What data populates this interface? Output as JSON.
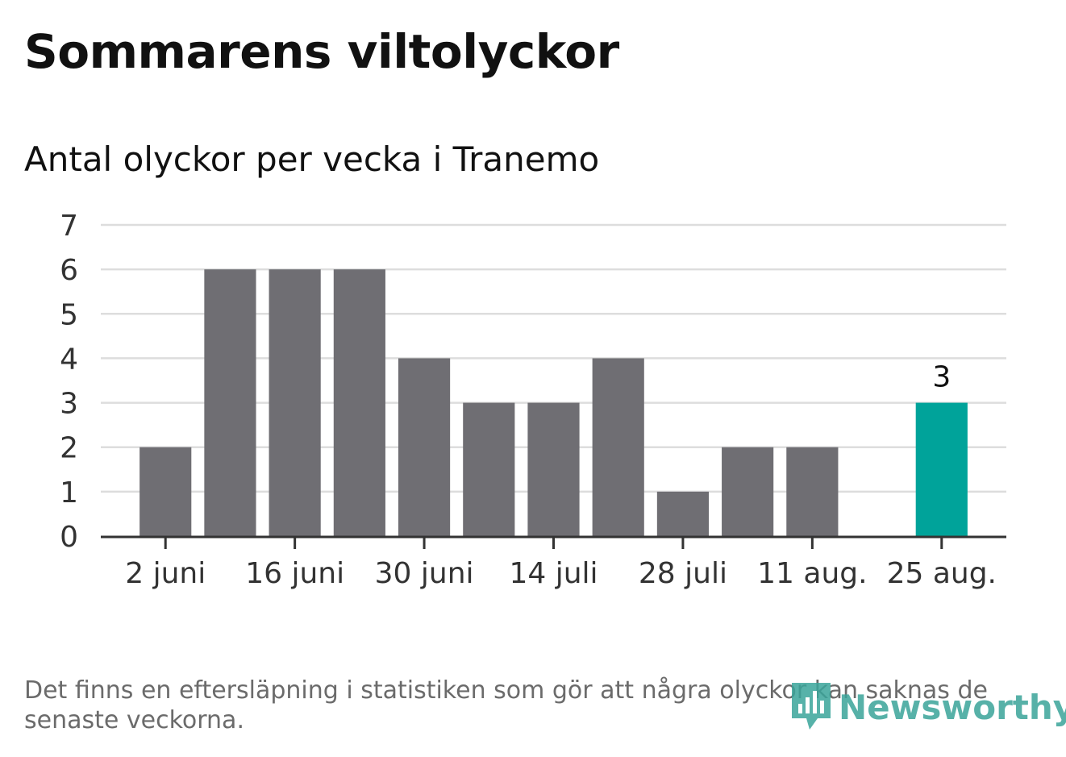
{
  "title": "Sommarens viltolyckor",
  "subtitle": "Antal olyckor per vecka i Tranemo",
  "footnote": "Det finns en eftersläpning i statistiken som gör att några olyckor kan saknas de senaste veckorna.",
  "brand": {
    "name": "Newsworthy",
    "icon": "newsworthy-logo-icon"
  },
  "colors": {
    "bar": "#6f6e73",
    "highlight": "#00a39a",
    "grid": "#dddddd",
    "axis": "#333333",
    "text": "#333333"
  },
  "chart_data": {
    "type": "bar",
    "categories": [
      "2 juni",
      "9 juni",
      "16 juni",
      "23 juni",
      "30 juni",
      "7 juli",
      "14 juli",
      "21 juli",
      "28 juli",
      "4 aug.",
      "11 aug.",
      "18 aug.",
      "25 aug."
    ],
    "values": [
      2,
      6,
      6,
      6,
      4,
      3,
      3,
      4,
      1,
      2,
      2,
      0,
      3
    ],
    "tick_labels": [
      "2 juni",
      "16 juni",
      "30 juni",
      "14 juli",
      "28 juli",
      "11 aug.",
      "25 aug."
    ],
    "highlight_index": 12,
    "highlight_label": "3",
    "yticks": [
      "0",
      "1",
      "2",
      "3",
      "4",
      "5",
      "6",
      "7"
    ],
    "ylim": [
      0,
      7
    ],
    "grid": true,
    "legend": "none"
  }
}
